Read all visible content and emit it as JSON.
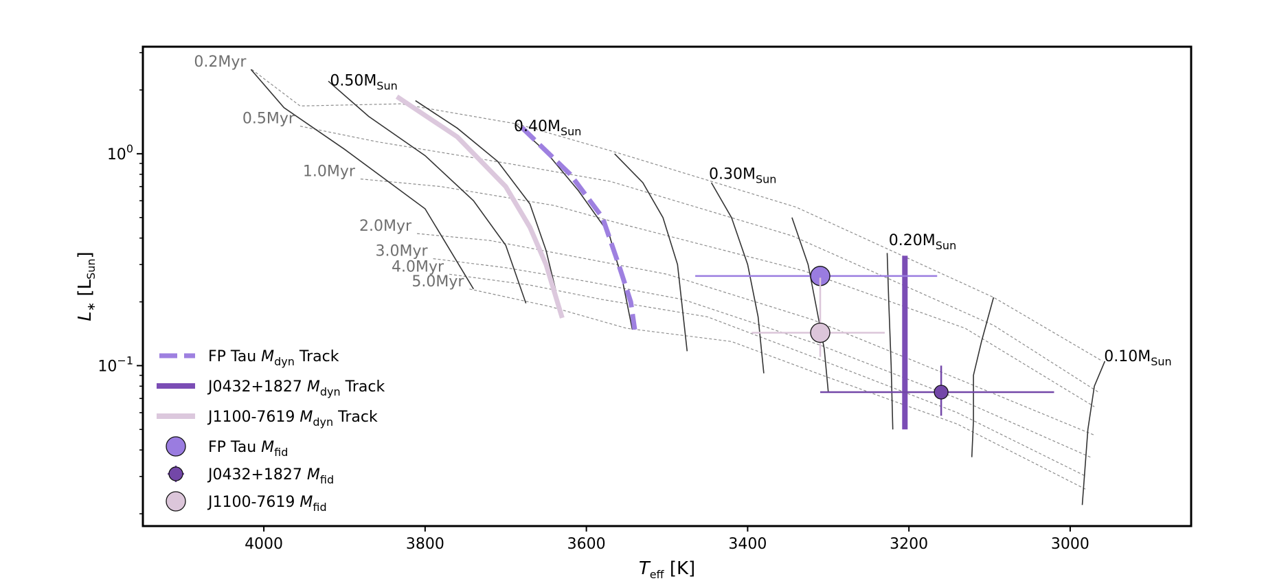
{
  "chart_data": {
    "type": "scatter",
    "title": "",
    "xlabel": {
      "var": "T",
      "sub": "eff",
      "unit": " [K]"
    },
    "ylabel": {
      "var": "L",
      "sub_star": "∗",
      "unit_open": " [L",
      "unit_sub": "Sun",
      "unit_close": "]"
    },
    "x_axis": {
      "range": [
        4150,
        2850
      ],
      "inverted": true,
      "ticks": [
        4000,
        3800,
        3600,
        3400,
        3200,
        3000
      ],
      "tick_labels": [
        "4000",
        "3800",
        "3600",
        "3400",
        "3200",
        "3000"
      ]
    },
    "y_axis": {
      "scale": "log",
      "range": [
        0.0175,
        3.2
      ],
      "major_ticks": [
        {
          "value": 1.0,
          "base": "10",
          "exp": "0"
        },
        {
          "value": 0.1,
          "base": "10",
          "exp": "−1"
        }
      ]
    },
    "isochrones": [
      {
        "label": "0.2Myr",
        "points": [
          [
            4015,
            2.5
          ],
          [
            3955,
            1.68
          ],
          [
            3830,
            1.72
          ],
          [
            3685,
            1.38
          ],
          [
            3565,
            1.02
          ],
          [
            3340,
            0.56
          ],
          [
            3095,
            0.21
          ],
          [
            2960,
            0.105
          ]
        ]
      },
      {
        "label": "0.5Myr",
        "points": [
          [
            3955,
            1.35
          ],
          [
            3860,
            1.14
          ],
          [
            3690,
            0.89
          ],
          [
            3570,
            0.74
          ],
          [
            3345,
            0.41
          ],
          [
            3095,
            0.155
          ],
          [
            2965,
            0.075
          ]
        ]
      },
      {
        "label": "1.0Myr",
        "points": [
          [
            3880,
            0.76
          ],
          [
            3780,
            0.7
          ],
          [
            3640,
            0.57
          ],
          [
            3560,
            0.47
          ],
          [
            3330,
            0.28
          ],
          [
            3130,
            0.15
          ],
          [
            2970,
            0.064
          ]
        ]
      },
      {
        "label": "2.0Myr",
        "points": [
          [
            3810,
            0.42
          ],
          [
            3720,
            0.39
          ],
          [
            3620,
            0.33
          ],
          [
            3500,
            0.27
          ],
          [
            3320,
            0.165
          ],
          [
            3150,
            0.09
          ],
          [
            2970,
            0.047
          ]
        ]
      },
      {
        "label": "3.0Myr",
        "points": [
          [
            3790,
            0.32
          ],
          [
            3700,
            0.29
          ],
          [
            3600,
            0.25
          ],
          [
            3480,
            0.205
          ],
          [
            3310,
            0.125
          ],
          [
            3140,
            0.07
          ],
          [
            2975,
            0.037
          ]
        ]
      },
      {
        "label": "4.0Myr",
        "points": [
          [
            3770,
            0.27
          ],
          [
            3670,
            0.24
          ],
          [
            3580,
            0.205
          ],
          [
            3450,
            0.17
          ],
          [
            3305,
            0.105
          ],
          [
            3140,
            0.06
          ],
          [
            2980,
            0.03
          ]
        ]
      },
      {
        "label": "5.0Myr",
        "points": [
          [
            3745,
            0.23
          ],
          [
            3645,
            0.19
          ],
          [
            3550,
            0.15
          ],
          [
            3420,
            0.13
          ],
          [
            3300,
            0.088
          ],
          [
            3140,
            0.053
          ],
          [
            2980,
            0.026
          ]
        ]
      }
    ],
    "mass_tracks": [
      {
        "label": "0.50",
        "label_at": [
          3918,
          2.1
        ],
        "points": [
          [
            4016,
            2.5
          ],
          [
            3975,
            1.65
          ],
          [
            3900,
            1.05
          ],
          [
            3800,
            0.55
          ],
          [
            3740,
            0.23
          ]
        ]
      },
      {
        "label": "",
        "points": [
          [
            3920,
            2.2
          ],
          [
            3870,
            1.5
          ],
          [
            3800,
            0.98
          ],
          [
            3740,
            0.6
          ],
          [
            3700,
            0.37
          ],
          [
            3675,
            0.197
          ]
        ]
      },
      {
        "label": "",
        "points": [
          [
            3812,
            1.78
          ],
          [
            3760,
            1.32
          ],
          [
            3710,
            0.92
          ],
          [
            3670,
            0.58
          ],
          [
            3650,
            0.35
          ],
          [
            3630,
            0.17
          ]
        ]
      },
      {
        "label": "0.40",
        "label_at": [
          3690,
          1.28
        ],
        "points": [
          [
            3688,
            1.38
          ],
          [
            3650,
            1.02
          ],
          [
            3610,
            0.67
          ],
          [
            3572,
            0.42
          ],
          [
            3555,
            0.25
          ],
          [
            3543,
            0.148
          ]
        ]
      },
      {
        "label": "",
        "points": [
          [
            3565,
            1.0
          ],
          [
            3530,
            0.73
          ],
          [
            3505,
            0.5
          ],
          [
            3487,
            0.3
          ],
          [
            3475,
            0.117
          ]
        ]
      },
      {
        "label": "0.30",
        "label_at": [
          3448,
          0.76
        ],
        "points": [
          [
            3445,
            0.73
          ],
          [
            3420,
            0.5
          ],
          [
            3400,
            0.3
          ],
          [
            3387,
            0.17
          ],
          [
            3380,
            0.092
          ]
        ]
      },
      {
        "label": "",
        "points": [
          [
            3345,
            0.5
          ],
          [
            3325,
            0.3
          ],
          [
            3315,
            0.19
          ],
          [
            3305,
            0.12
          ],
          [
            3300,
            0.075
          ]
        ]
      },
      {
        "label": "0.20",
        "label_at": [
          3225,
          0.37
        ],
        "points": [
          [
            3227,
            0.34
          ],
          [
            3225,
            0.2
          ],
          [
            3222,
            0.1
          ],
          [
            3220,
            0.05
          ]
        ]
      },
      {
        "label": "",
        "points": [
          [
            3095,
            0.21
          ],
          [
            3110,
            0.13
          ],
          [
            3120,
            0.09
          ],
          [
            3120,
            0.055
          ],
          [
            3122,
            0.037
          ]
        ]
      },
      {
        "label": "0.10",
        "label_at": [
          2958,
          0.105
        ],
        "points": [
          [
            2957,
            0.105
          ],
          [
            2970,
            0.08
          ],
          [
            2978,
            0.05
          ],
          [
            2985,
            0.022
          ]
        ]
      }
    ],
    "dyn_tracks": [
      {
        "name": "FP Tau",
        "style": "dashed",
        "color": "#9e80e0",
        "points": [
          [
            3680,
            1.33
          ],
          [
            3620,
            0.8
          ],
          [
            3580,
            0.5
          ],
          [
            3560,
            0.3
          ],
          [
            3545,
            0.2
          ],
          [
            3540,
            0.148
          ]
        ]
      },
      {
        "name": "J0432+1827",
        "style": "solid",
        "color": "#7b4db5",
        "points": [
          [
            3205,
            0.33
          ],
          [
            3205,
            0.05
          ]
        ]
      },
      {
        "name": "J1100-7619",
        "style": "solid",
        "color": "#dcc8dd",
        "points": [
          [
            3835,
            1.86
          ],
          [
            3760,
            1.2
          ],
          [
            3700,
            0.7
          ],
          [
            3670,
            0.45
          ],
          [
            3650,
            0.3
          ],
          [
            3630,
            0.168
          ]
        ]
      }
    ],
    "fid_points": [
      {
        "name": "FP Tau",
        "teff": 3310,
        "L": 0.265,
        "xerr": [
          3465,
          3165
        ],
        "yerr": [
          0.265,
          0.265
        ],
        "color": "#9a7ce0",
        "size": "large"
      },
      {
        "name": "J0432+1827",
        "teff": 3160,
        "L": 0.075,
        "xerr": [
          3310,
          3020
        ],
        "yerr": [
          0.058,
          0.1
        ],
        "color": "#7347a8",
        "size": "small"
      },
      {
        "name": "J1100-7619",
        "teff": 3310,
        "L": 0.143,
        "xerr": [
          3395,
          3230
        ],
        "yerr": [
          0.11,
          0.26
        ],
        "color": "#dcc6da",
        "size": "large"
      }
    ],
    "legend": {
      "position": "lower-left",
      "entries": [
        {
          "kind": "dashed",
          "color": "#9e80e0",
          "name": "FP Tau ",
          "math": "M",
          "sub": "dyn",
          "suffix": " Track"
        },
        {
          "kind": "solid-thick",
          "color": "#7b4db5",
          "name": "J0432+1827 ",
          "math": "M",
          "sub": "dyn",
          "suffix": " Track"
        },
        {
          "kind": "solid-thick",
          "color": "#dcc8dd",
          "name": "J1100-7619 ",
          "math": "M",
          "sub": "dyn",
          "suffix": " Track"
        },
        {
          "kind": "marker",
          "color": "#9a7ce0",
          "size": "large",
          "name": "FP Tau ",
          "math": "M",
          "sub": "fid",
          "suffix": ""
        },
        {
          "kind": "marker",
          "color": "#7347a8",
          "size": "small",
          "name": "J0432+1827 ",
          "math": "M",
          "sub": "fid",
          "suffix": ""
        },
        {
          "kind": "marker",
          "color": "#dcc6da",
          "size": "large",
          "name": "J1100-7619 ",
          "math": "M",
          "sub": "fid",
          "suffix": ""
        }
      ]
    },
    "mass_label_prefix": "M",
    "mass_label_sub": "Sun"
  }
}
